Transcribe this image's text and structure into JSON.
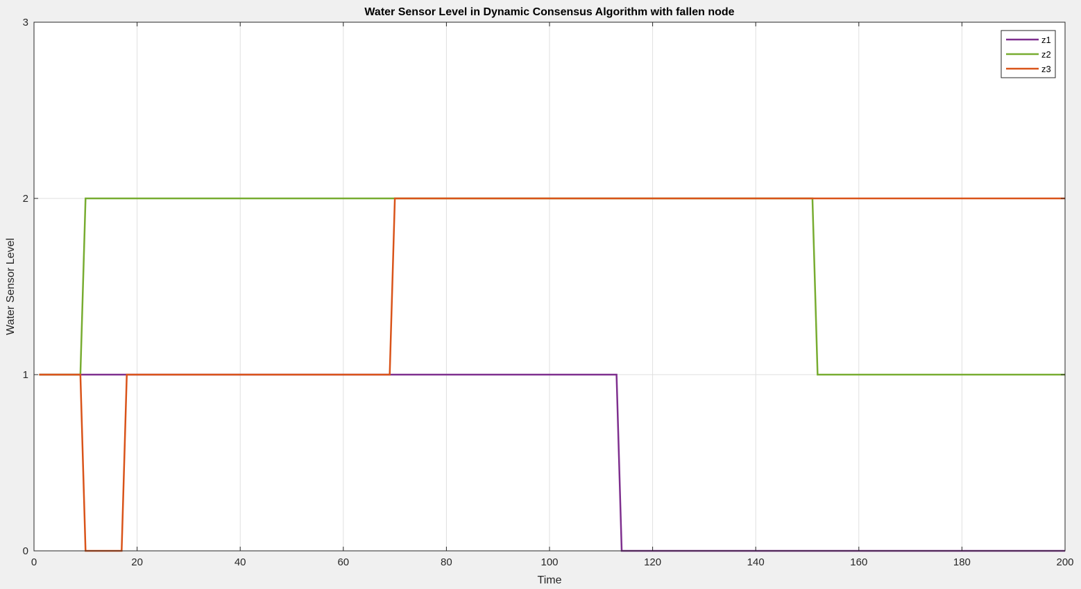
{
  "chart_data": {
    "type": "line",
    "title": "Water Sensor Level in Dynamic Consensus Algorithm with fallen node",
    "xlabel": "Time",
    "ylabel": "Water Sensor Level",
    "xlim": [
      0,
      200
    ],
    "ylim": [
      0,
      3
    ],
    "xticks": [
      0,
      20,
      40,
      60,
      80,
      100,
      120,
      140,
      160,
      180,
      200
    ],
    "yticks": [
      0,
      1,
      2,
      3
    ],
    "grid": true,
    "legend_position": "top-right",
    "series": [
      {
        "name": "z1",
        "color": "#7e2f8e",
        "x": [
          1,
          113,
          114,
          200
        ],
        "y": [
          1,
          1,
          0,
          0
        ]
      },
      {
        "name": "z2",
        "color": "#77ac30",
        "x": [
          1,
          9,
          10,
          151,
          152,
          200
        ],
        "y": [
          1,
          1,
          2,
          2,
          1,
          1
        ]
      },
      {
        "name": "z3",
        "color": "#d95319",
        "x": [
          1,
          9,
          10,
          17,
          18,
          69,
          70,
          200
        ],
        "y": [
          1,
          1,
          0,
          0,
          1,
          1,
          2,
          2
        ]
      }
    ]
  }
}
